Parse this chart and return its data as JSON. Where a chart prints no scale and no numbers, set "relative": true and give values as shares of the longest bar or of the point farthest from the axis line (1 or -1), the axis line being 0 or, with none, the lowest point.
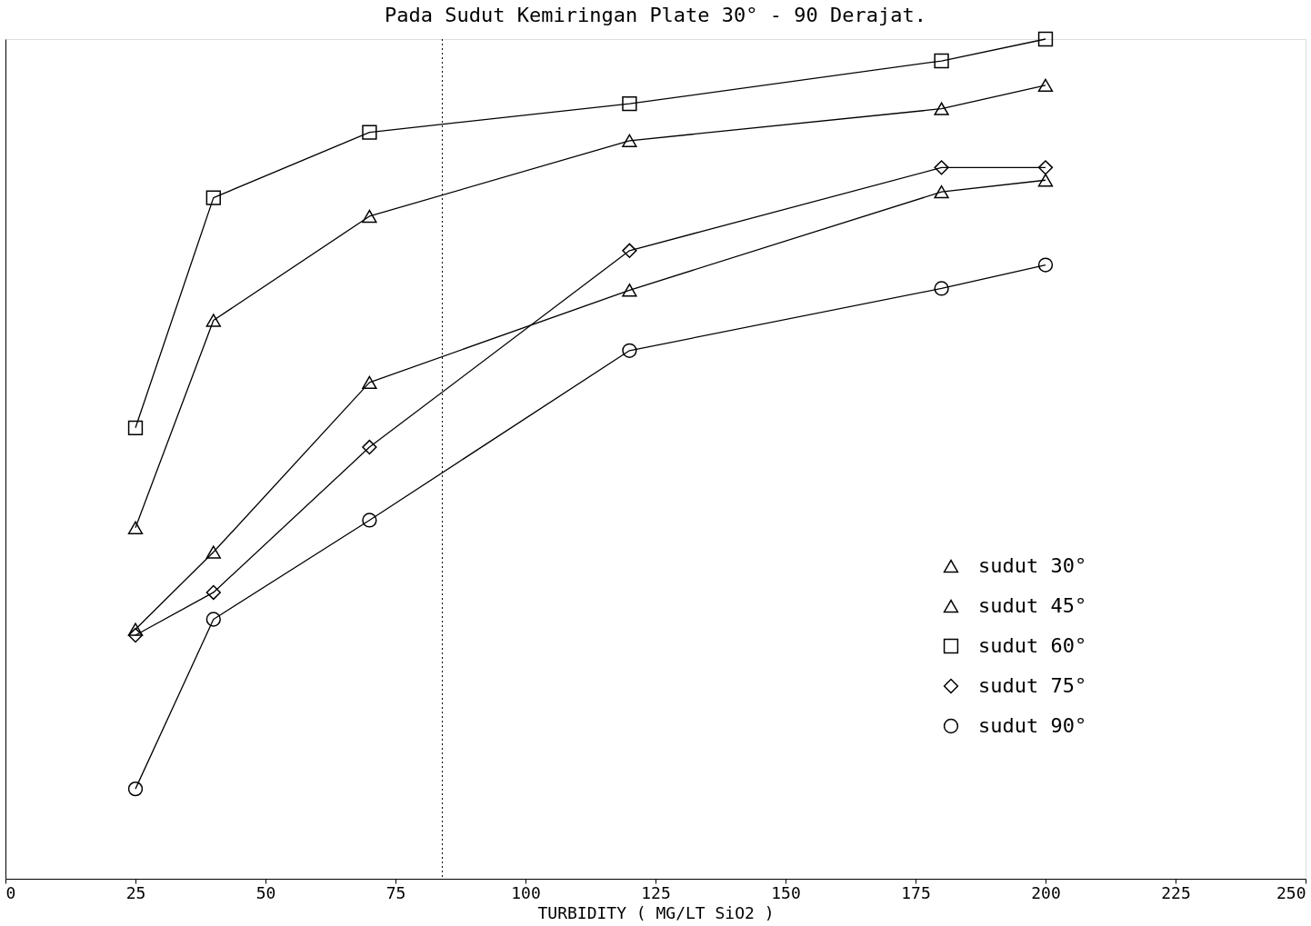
{
  "chart_data": {
    "type": "line",
    "title": "Pada Sudut Kemiringan Plate 30° - 90 Derajat.",
    "xlabel": "TURBIDITY ( MG/LT SiO2 )",
    "x": [
      25,
      40,
      70,
      120,
      180,
      200
    ],
    "relative": true,
    "xlim": [
      0,
      250
    ],
    "xticks": [
      0,
      25,
      50,
      75,
      100,
      125,
      150,
      175,
      200,
      225,
      250
    ],
    "series": [
      {
        "name": "sudut 30°",
        "color": "#000000",
        "marker": "triangle",
        "values": [
          0.297,
          0.389,
          0.591,
          0.701,
          0.818,
          0.832
        ]
      },
      {
        "name": "sudut 45°",
        "color": "#000000",
        "marker": "triangle",
        "values": [
          0.418,
          0.665,
          0.789,
          0.879,
          0.917,
          0.945
        ]
      },
      {
        "name": "sudut 60°",
        "color": "#000000",
        "marker": "square",
        "values": [
          0.537,
          0.811,
          0.889,
          0.923,
          0.974,
          1
        ]
      },
      {
        "name": "sudut 75°",
        "color": "#000000",
        "marker": "diamond",
        "values": [
          0.29,
          0.341,
          0.514,
          0.748,
          0.847,
          0.847
        ]
      },
      {
        "name": "sudut 90°",
        "color": "#000000",
        "marker": "circle",
        "values": [
          0.107,
          0.309,
          0.427,
          0.629,
          0.703,
          0.731
        ]
      }
    ],
    "ref_lines": [
      {
        "axis": "x",
        "value": 84,
        "line_style": "dotted"
      }
    ],
    "legend": "bottom right",
    "grid": false
  }
}
